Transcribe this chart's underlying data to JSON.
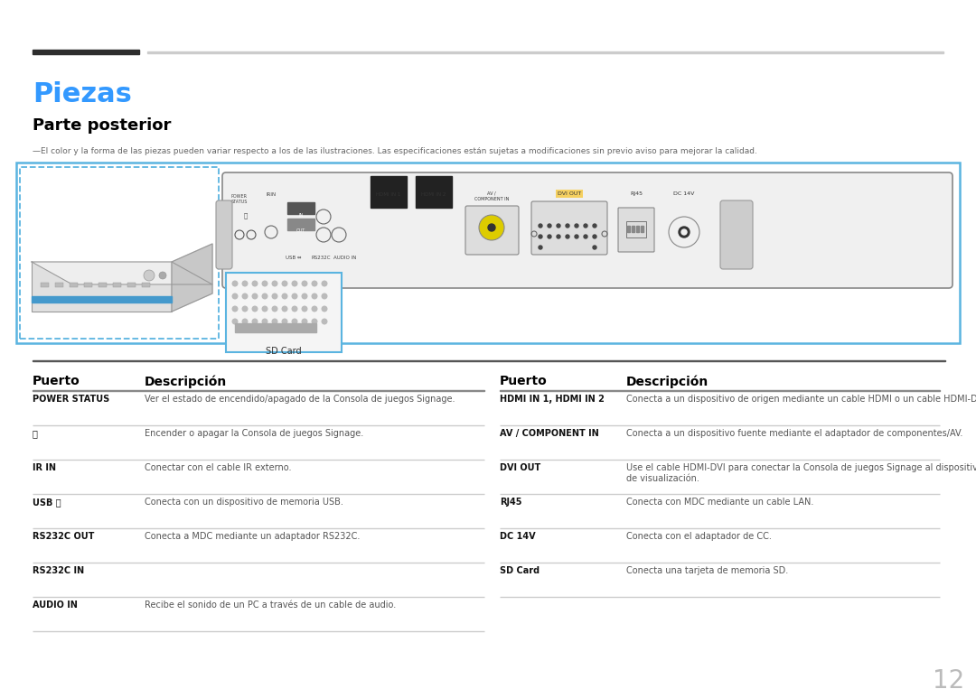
{
  "title": "Piezas",
  "subtitle": "Parte posterior",
  "note": "—El color y la forma de las piezas pueden variar respecto a los de las ilustraciones. Las especificaciones están sujetas a modificaciones sin previo aviso para mejorar la calidad.",
  "title_color": "#3399ff",
  "subtitle_color": "#000000",
  "bg_color": "#ffffff",
  "table_header_left": "Puerto",
  "table_header_right": "Descripción",
  "left_rows": [
    {
      "port": "POWER STATUS",
      "desc": "Ver el estado de encendido/apagado de la Consola de juegos Signage."
    },
    {
      "port": "⏻",
      "desc": "Encender o apagar la Consola de juegos Signage."
    },
    {
      "port": "IR IN",
      "desc": "Conectar con el cable IR externo."
    },
    {
      "port": "USB ⭧",
      "desc": "Conecta con un dispositivo de memoria USB."
    },
    {
      "port": "RS232C OUT",
      "desc": "Conecta a MDC mediante un adaptador RS232C."
    },
    {
      "port": "RS232C IN",
      "desc": ""
    },
    {
      "port": "AUDIO IN",
      "desc": "Recibe el sonido de un PC a través de un cable de audio."
    }
  ],
  "right_rows": [
    {
      "port": "HDMI IN 1, HDMI IN 2",
      "desc": "Conecta a un dispositivo de origen mediante un cable HDMI o un cable HDMI-DVI."
    },
    {
      "port": "AV / COMPONENT IN",
      "desc": "Conecta a un dispositivo fuente mediante el adaptador de componentes/AV."
    },
    {
      "port": "DVI OUT",
      "desc": "Use el cable HDMI-DVI para conectar la Consola de juegos Signage al dispositivo\nde visualización."
    },
    {
      "port": "RJ45",
      "desc": "Conecta con MDC mediante un cable LAN."
    },
    {
      "port": "DC 14V",
      "desc": "Conecta con el adaptador de CC."
    },
    {
      "port": "SD Card",
      "desc": "Conecta una tarjeta de memoria SD."
    }
  ],
  "page_number": "12",
  "line_color": "#cccccc",
  "top_bar_dark": "#2d2d2d",
  "top_bar_light": "#cccccc",
  "blue_border": "#5ab4e0",
  "panel_border": "#888888",
  "panel_bg": "#f0f0f0"
}
